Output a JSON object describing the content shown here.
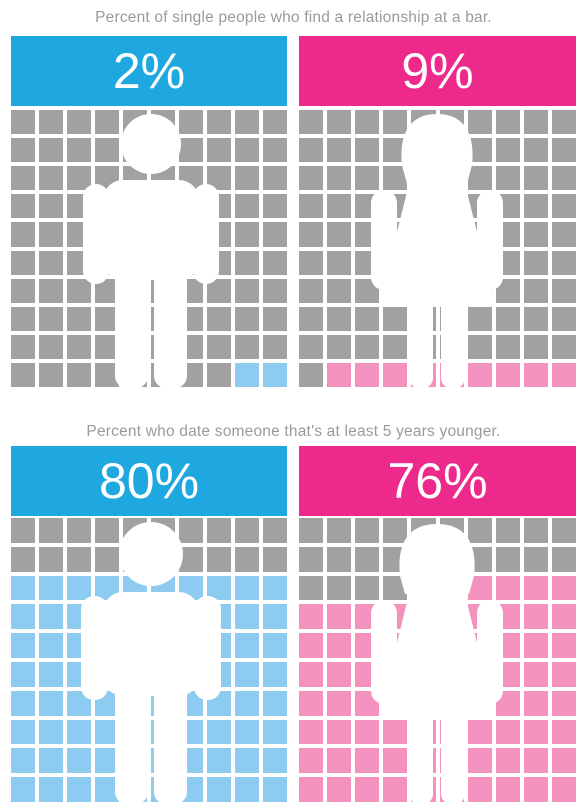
{
  "colors": {
    "male": "#1fa8e0",
    "male_light": "#8dccf0",
    "female": "#ed2a8b",
    "female_light": "#f392bd",
    "empty": "#a1a1a1",
    "figure": "#ffffff"
  },
  "sections": [
    {
      "caption": "Percent of single people who find a relationship at a bar.",
      "panels": [
        {
          "label": "2%",
          "percent": 2,
          "gender": "male",
          "figure_icon": "man-icon"
        },
        {
          "label": "9%",
          "percent": 9,
          "gender": "female",
          "figure_icon": "woman-icon"
        }
      ]
    },
    {
      "caption": "Percent who date someone that's at least 5 years younger.",
      "panels": [
        {
          "label": "80%",
          "percent": 80,
          "gender": "male",
          "figure_icon": "man-icon"
        },
        {
          "label": "76%",
          "percent": 76,
          "gender": "female",
          "figure_icon": "woman-icon"
        }
      ]
    }
  ],
  "chart_data": [
    {
      "type": "bar",
      "title": "Percent of single people who find a relationship at a bar.",
      "categories": [
        "Men",
        "Women"
      ],
      "values": [
        2,
        9
      ],
      "unit": "%"
    },
    {
      "type": "bar",
      "title": "Percent who date someone that's at least 5 years younger.",
      "categories": [
        "Men",
        "Women"
      ],
      "values": [
        80,
        76
      ],
      "unit": "%"
    }
  ]
}
